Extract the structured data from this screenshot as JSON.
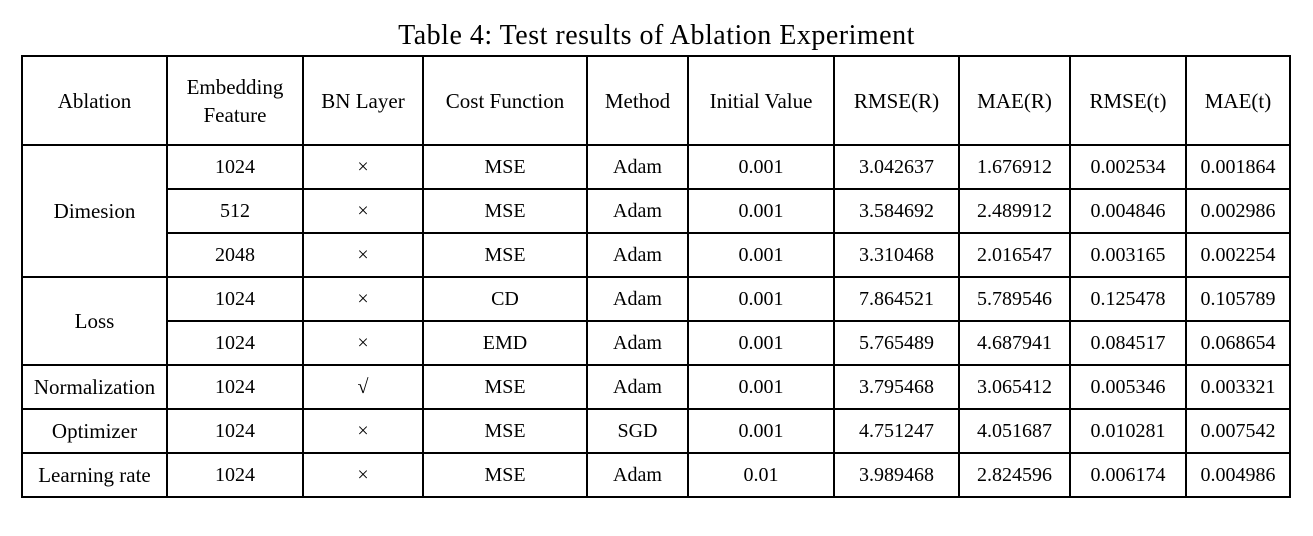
{
  "caption": "Table 4: Test results of Ablation Experiment",
  "columns": [
    "Ablation",
    "Embedding Feature",
    "BN Layer",
    "Cost Function",
    "Method",
    "Initial Value",
    "RMSE(R)",
    "MAE(R)",
    "RMSE(t)",
    "MAE(t)"
  ],
  "column_lines": {
    "embedding_line1": "Embedding",
    "embedding_line2": "Feature"
  },
  "groups": [
    {
      "name": "Dimesion",
      "rows": [
        [
          "1024",
          "×",
          "MSE",
          "Adam",
          "0.001",
          "3.042637",
          "1.676912",
          "0.002534",
          "0.001864"
        ],
        [
          "512",
          "×",
          "MSE",
          "Adam",
          "0.001",
          "3.584692",
          "2.489912",
          "0.004846",
          "0.002986"
        ],
        [
          "2048",
          "×",
          "MSE",
          "Adam",
          "0.001",
          "3.310468",
          "2.016547",
          "0.003165",
          "0.002254"
        ]
      ]
    },
    {
      "name": "Loss",
      "rows": [
        [
          "1024",
          "×",
          "CD",
          "Adam",
          "0.001",
          "7.864521",
          "5.789546",
          "0.125478",
          "0.105789"
        ],
        [
          "1024",
          "×",
          "EMD",
          "Adam",
          "0.001",
          "5.765489",
          "4.687941",
          "0.084517",
          "0.068654"
        ]
      ]
    },
    {
      "name": "Normalization",
      "rows": [
        [
          "1024",
          "√",
          "MSE",
          "Adam",
          "0.001",
          "3.795468",
          "3.065412",
          "0.005346",
          "0.003321"
        ]
      ]
    },
    {
      "name": "Optimizer",
      "rows": [
        [
          "1024",
          "×",
          "MSE",
          "SGD",
          "0.001",
          "4.751247",
          "4.051687",
          "0.010281",
          "0.007542"
        ]
      ]
    },
    {
      "name": "Learning rate",
      "rows": [
        [
          "1024",
          "×",
          "MSE",
          "Adam",
          "0.01",
          "3.989468",
          "2.824596",
          "0.006174",
          "0.004986"
        ]
      ]
    }
  ]
}
